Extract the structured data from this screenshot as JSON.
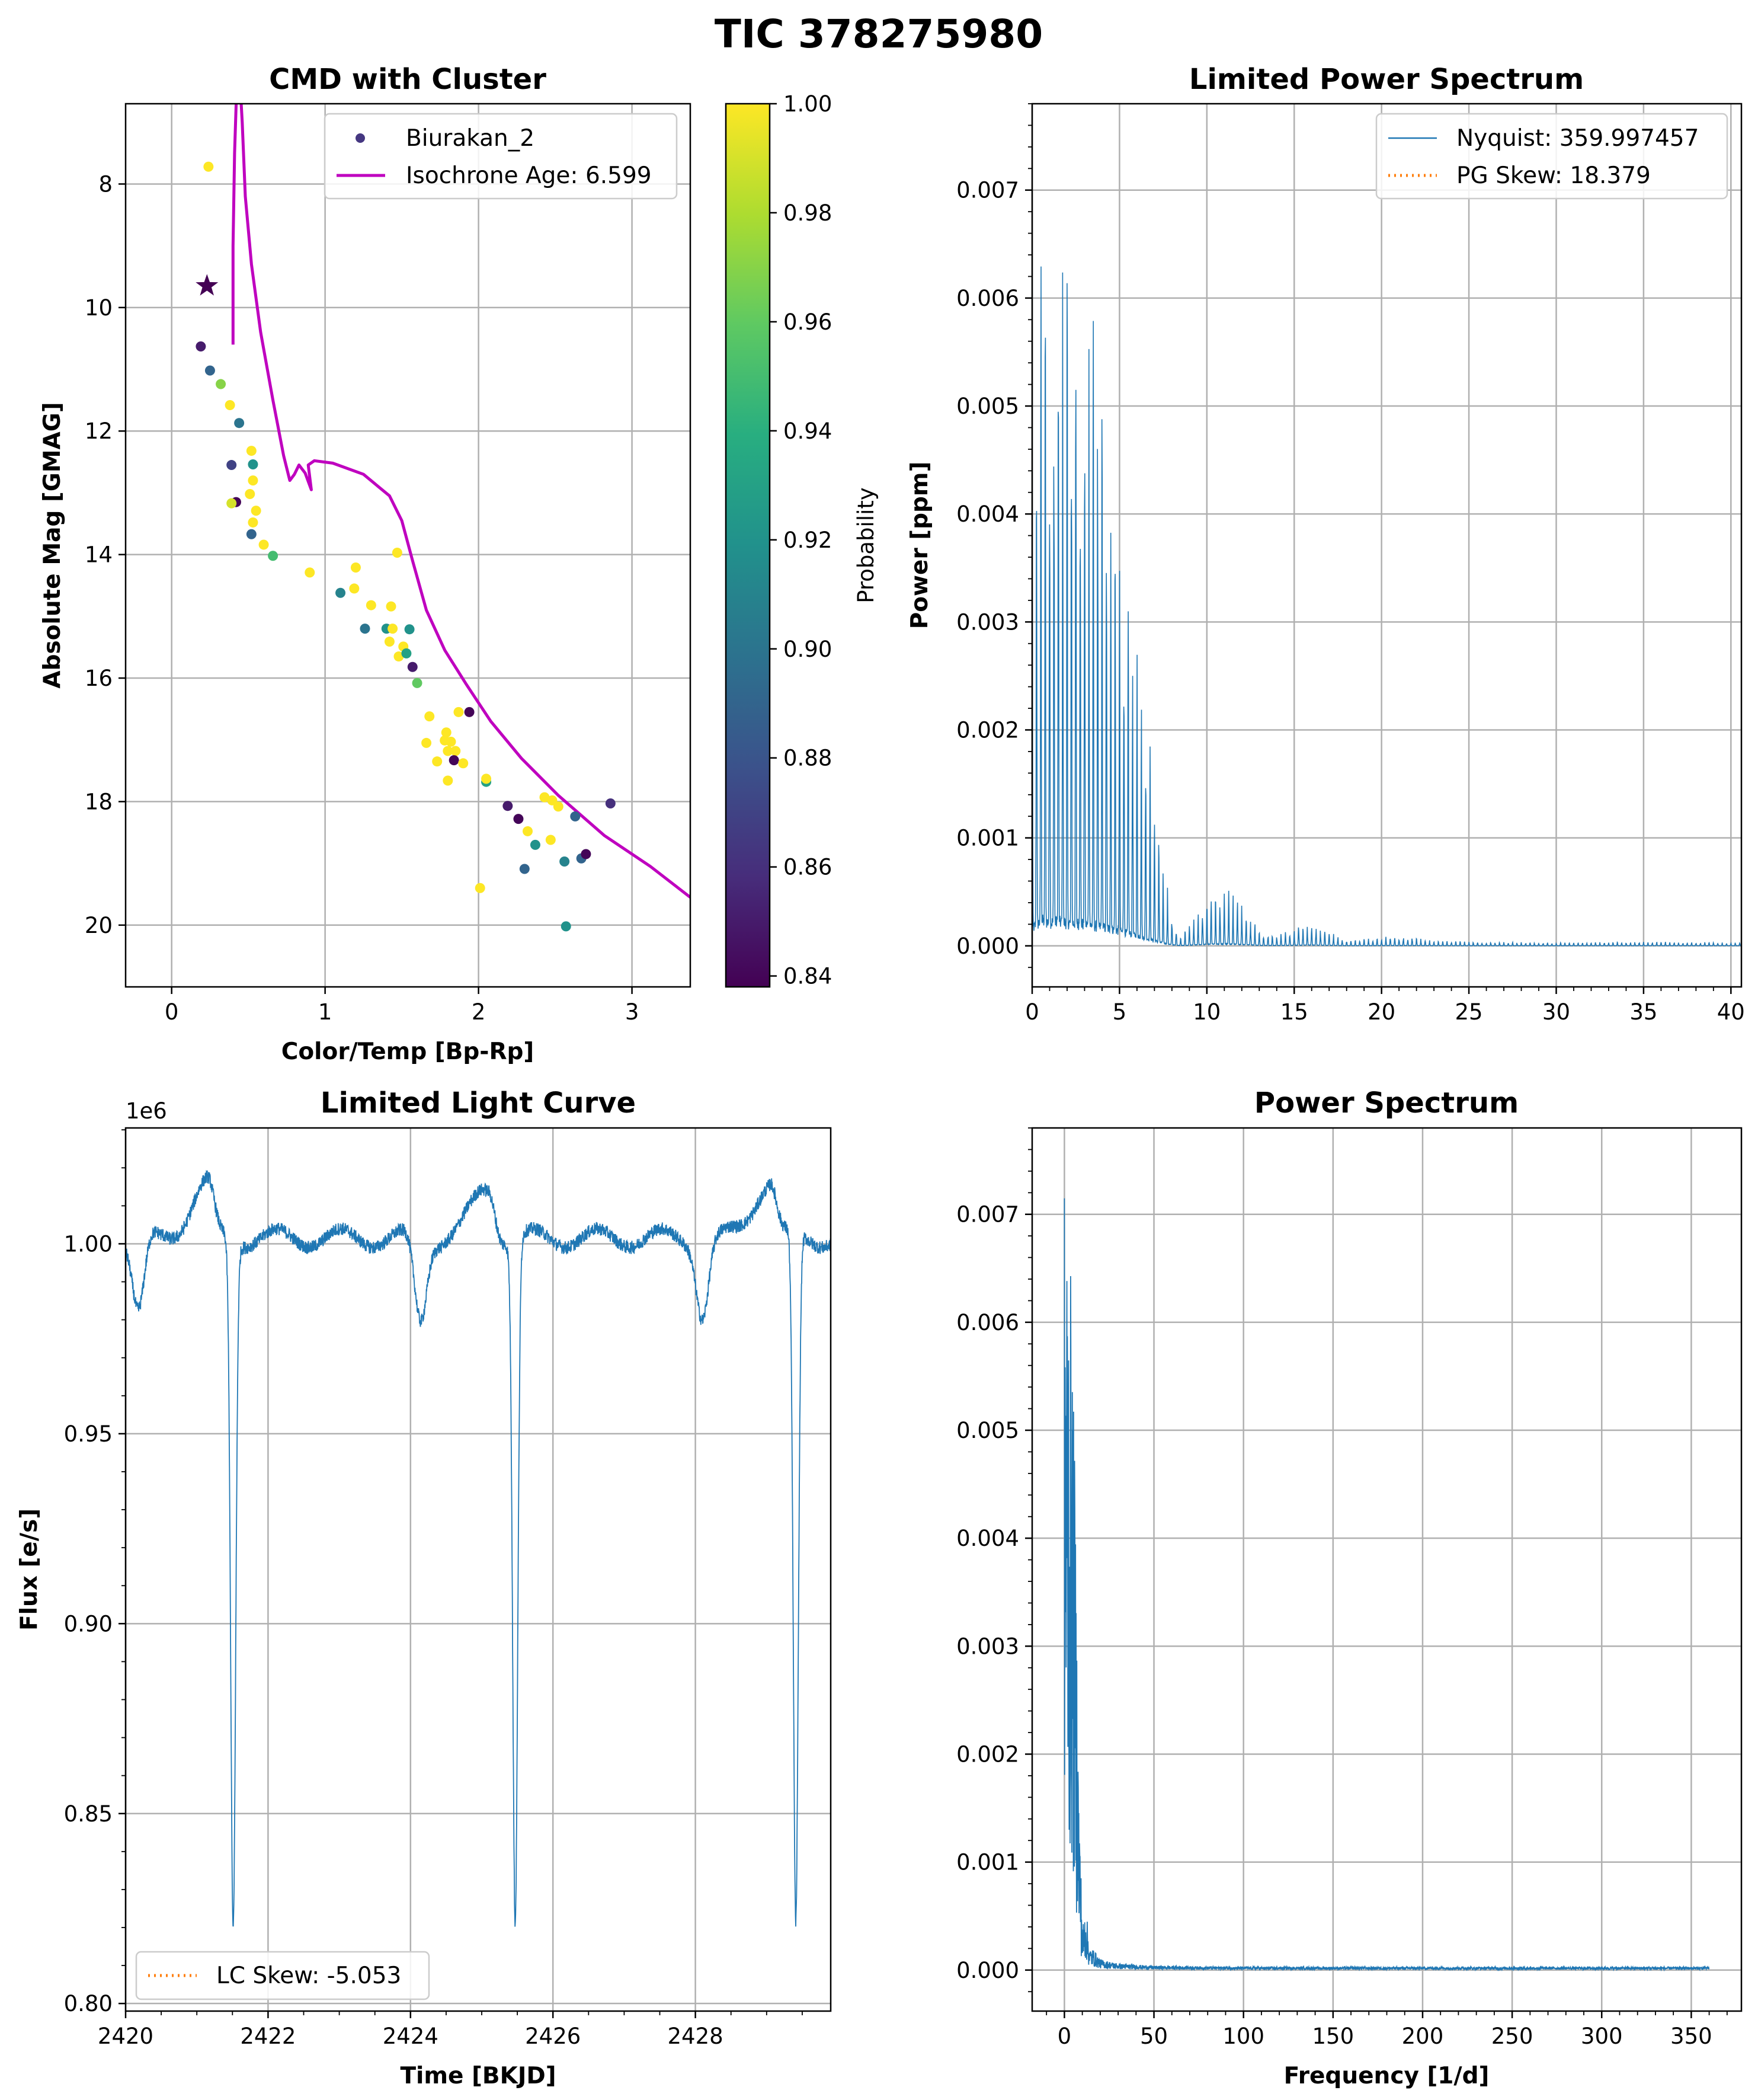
{
  "suptitle": "TIC 378275980",
  "colors": {
    "blue": "#1f77b4",
    "orange": "#ff7f0e",
    "magenta": "#bf00bf",
    "star": "#440154"
  },
  "chart_data": [
    {
      "id": "cmd",
      "type": "scatter",
      "title": "CMD with Cluster",
      "xlabel": "Color/Temp [Bp-Rp]",
      "ylabel": "Absolute Mag [GMAG]",
      "xlim": [
        -0.3,
        3.38
      ],
      "ylim": [
        21.0,
        6.7
      ],
      "y_inverted": true,
      "xticks": [
        0,
        1,
        2,
        3
      ],
      "yticks": [
        8,
        10,
        12,
        14,
        16,
        18,
        20
      ],
      "grid": true,
      "legend": {
        "position": "top-right",
        "entries": [
          "Biurakan_2",
          "Isochrone Age: 6.599"
        ]
      },
      "colorbar": {
        "label": "Probability",
        "colormap": "viridis",
        "range": [
          0.838,
          1.0
        ],
        "ticks": [
          0.84,
          0.86,
          0.88,
          0.9,
          0.92,
          0.94,
          0.96,
          0.98,
          1.0
        ],
        "tick_labels": [
          "0.84",
          "0.86",
          "0.88",
          "0.90",
          "0.92",
          "0.94",
          "0.96",
          "0.98",
          "1.00"
        ]
      },
      "target_star": {
        "x": 0.23,
        "y": 9.65,
        "marker": "star"
      },
      "members": [
        [
          0.24,
          7.72,
          1.0
        ],
        [
          0.19,
          10.63,
          0.85
        ],
        [
          0.25,
          11.02,
          0.89
        ],
        [
          0.32,
          11.24,
          0.97
        ],
        [
          0.38,
          11.58,
          1.0
        ],
        [
          0.44,
          11.87,
          0.9
        ],
        [
          0.39,
          12.55,
          0.87
        ],
        [
          0.52,
          12.32,
          1.0
        ],
        [
          0.53,
          12.54,
          0.92
        ],
        [
          0.53,
          12.8,
          1.0
        ],
        [
          0.51,
          13.02,
          1.0
        ],
        [
          0.42,
          13.15,
          0.84
        ],
        [
          0.39,
          13.17,
          0.99
        ],
        [
          0.55,
          13.29,
          1.0
        ],
        [
          0.53,
          13.48,
          1.0
        ],
        [
          0.52,
          13.67,
          0.89
        ],
        [
          0.6,
          13.84,
          1.0
        ],
        [
          0.66,
          14.02,
          0.95
        ],
        [
          0.9,
          14.29,
          1.0
        ],
        [
          1.1,
          14.62,
          0.91
        ],
        [
          1.19,
          14.55,
          1.0
        ],
        [
          1.2,
          14.21,
          1.0
        ],
        [
          1.3,
          14.82,
          1.0
        ],
        [
          1.47,
          13.97,
          1.0
        ],
        [
          1.43,
          14.84,
          1.0
        ],
        [
          1.26,
          15.2,
          0.9
        ],
        [
          1.4,
          15.2,
          0.92
        ],
        [
          1.44,
          15.2,
          1.0
        ],
        [
          1.55,
          15.21,
          0.92
        ],
        [
          1.42,
          15.41,
          1.0
        ],
        [
          1.51,
          15.49,
          1.0
        ],
        [
          1.48,
          15.65,
          1.0
        ],
        [
          1.53,
          15.6,
          0.93
        ],
        [
          1.57,
          15.82,
          0.85
        ],
        [
          1.6,
          16.08,
          0.96
        ],
        [
          1.68,
          16.62,
          1.0
        ],
        [
          1.66,
          17.05,
          1.0
        ],
        [
          1.79,
          16.88,
          1.0
        ],
        [
          1.87,
          16.55,
          1.0
        ],
        [
          1.94,
          16.55,
          0.84
        ],
        [
          1.78,
          17.01,
          1.0
        ],
        [
          1.82,
          17.03,
          1.0
        ],
        [
          1.8,
          17.18,
          1.0
        ],
        [
          1.85,
          17.18,
          1.0
        ],
        [
          1.84,
          17.33,
          0.84
        ],
        [
          1.9,
          17.38,
          1.0
        ],
        [
          1.73,
          17.35,
          1.0
        ],
        [
          1.8,
          17.66,
          1.0
        ],
        [
          2.05,
          17.68,
          0.93
        ],
        [
          2.05,
          17.63,
          1.0
        ],
        [
          2.43,
          17.93,
          1.0
        ],
        [
          2.48,
          17.98,
          1.0
        ],
        [
          2.52,
          18.08,
          1.0
        ],
        [
          2.19,
          18.07,
          0.85
        ],
        [
          2.26,
          18.28,
          0.84
        ],
        [
          2.32,
          18.48,
          1.0
        ],
        [
          2.37,
          18.7,
          0.92
        ],
        [
          2.47,
          18.62,
          1.0
        ],
        [
          2.63,
          18.24,
          0.89
        ],
        [
          2.86,
          18.03,
          0.86
        ],
        [
          2.67,
          18.92,
          0.89
        ],
        [
          2.7,
          18.85,
          0.84
        ],
        [
          2.56,
          18.97,
          0.91
        ],
        [
          2.3,
          19.09,
          0.89
        ],
        [
          2.01,
          19.4,
          1.0
        ],
        [
          2.57,
          20.02,
          0.92
        ]
      ],
      "isochrone": [
        [
          0.4,
          10.6
        ],
        [
          0.4,
          9.0
        ],
        [
          0.41,
          7.5
        ],
        [
          0.42,
          6.72
        ],
        [
          0.44,
          6.1
        ],
        [
          0.46,
          7.0
        ],
        [
          0.48,
          8.2
        ],
        [
          0.52,
          9.3
        ],
        [
          0.58,
          10.4
        ],
        [
          0.66,
          11.5
        ],
        [
          0.73,
          12.4
        ],
        [
          0.77,
          12.8
        ],
        [
          0.8,
          12.7
        ],
        [
          0.83,
          12.55
        ],
        [
          0.87,
          12.68
        ],
        [
          0.91,
          12.95
        ],
        [
          0.89,
          12.55
        ],
        [
          0.93,
          12.48
        ],
        [
          1.05,
          12.52
        ],
        [
          1.25,
          12.7
        ],
        [
          1.42,
          13.05
        ],
        [
          1.5,
          13.45
        ],
        [
          1.57,
          14.1
        ],
        [
          1.66,
          14.9
        ],
        [
          1.78,
          15.55
        ],
        [
          1.92,
          16.1
        ],
        [
          2.08,
          16.7
        ],
        [
          2.28,
          17.3
        ],
        [
          2.52,
          17.9
        ],
        [
          2.82,
          18.55
        ],
        [
          3.12,
          19.05
        ],
        [
          3.38,
          19.55
        ]
      ]
    },
    {
      "id": "limited-ps",
      "type": "line",
      "title": "Limited Power Spectrum",
      "xlabel": "",
      "ylabel": "Power [ppm]",
      "xlim": [
        0,
        40.6
      ],
      "ylim": [
        -0.00038,
        0.0078
      ],
      "xticks": [
        0,
        5,
        10,
        15,
        20,
        25,
        30,
        35,
        40
      ],
      "yticks": [
        0.0,
        0.001,
        0.002,
        0.003,
        0.004,
        0.005,
        0.006,
        0.007
      ],
      "ytick_labels": [
        "0.000",
        "0.001",
        "0.002",
        "0.003",
        "0.004",
        "0.005",
        "0.006",
        "0.007"
      ],
      "grid": true,
      "legend": {
        "position": "top-right",
        "entries": [
          "Nyquist: 359.997457",
          "PG Skew: 18.379"
        ]
      },
      "approx_envelope": [
        [
          0.0,
          0.0051
        ],
        [
          0.5,
          0.0074
        ],
        [
          1.0,
          0.007
        ],
        [
          1.5,
          0.007
        ],
        [
          2.0,
          0.0069
        ],
        [
          2.5,
          0.0067
        ],
        [
          3.0,
          0.0064
        ],
        [
          3.5,
          0.006
        ],
        [
          4.0,
          0.0055
        ],
        [
          4.5,
          0.005
        ],
        [
          5.0,
          0.0044
        ],
        [
          5.5,
          0.0037
        ],
        [
          6.0,
          0.003
        ],
        [
          6.5,
          0.0023
        ],
        [
          7.0,
          0.0015
        ],
        [
          7.5,
          0.0008
        ],
        [
          8.0,
          0.0003
        ],
        [
          8.5,
          0.0001
        ],
        [
          9.0,
          0.0002
        ],
        [
          10.0,
          0.00045
        ],
        [
          11.0,
          0.00055
        ],
        [
          12.0,
          0.00042
        ],
        [
          13.0,
          0.00015
        ],
        [
          14.0,
          0.0001
        ],
        [
          15.0,
          0.00018
        ],
        [
          16.0,
          0.00022
        ],
        [
          17.0,
          0.00014
        ],
        [
          18.0,
          5e-05
        ],
        [
          20.0,
          8e-05
        ],
        [
          21.0,
          0.0001
        ],
        [
          23.0,
          5e-05
        ],
        [
          25.0,
          4e-05
        ],
        [
          30.0,
          3e-05
        ],
        [
          35.0,
          4e-05
        ],
        [
          40.6,
          3e-05
        ]
      ]
    },
    {
      "id": "limited-lc",
      "type": "line",
      "title": "Limited Light Curve",
      "xlabel": "Time [BKJD]",
      "ylabel": "Flux [e/s]",
      "offset_text": "1e6",
      "xlim": [
        2420,
        2429.9
      ],
      "ylim": [
        0.798,
        1.0305
      ],
      "xticks": [
        2420,
        2422,
        2424,
        2426,
        2428
      ],
      "yticks": [
        0.8,
        0.85,
        0.9,
        0.95,
        1.0
      ],
      "ytick_labels": [
        "0.80",
        "0.85",
        "0.90",
        "0.95",
        "1.00"
      ],
      "grid": true,
      "legend": {
        "position": "lower-left",
        "entries": [
          "LC Skew: -5.053"
        ]
      },
      "primary_eclipses": [
        {
          "t": 2421.51,
          "min_flux": 0.819,
          "width": 0.09
        },
        {
          "t": 2425.47,
          "min_flux": 0.82,
          "width": 0.09
        },
        {
          "t": 2429.41,
          "min_flux": 0.818,
          "width": 0.09
        }
      ],
      "secondary_eclipses": [
        {
          "t": 2420.18,
          "min_flux": 0.98,
          "width": 0.12
        },
        {
          "t": 2424.14,
          "min_flux": 0.978,
          "width": 0.12
        },
        {
          "t": 2428.1,
          "min_flux": 0.98,
          "width": 0.12
        }
      ],
      "pre_eclipse_peaks": [
        {
          "t": 2421.15,
          "flux": 1.016
        },
        {
          "t": 2425.1,
          "flux": 1.015
        },
        {
          "t": 2429.05,
          "flux": 1.017
        }
      ]
    },
    {
      "id": "full-ps",
      "type": "line",
      "title": "Power Spectrum",
      "xlabel": "Frequency [1/d]",
      "ylabel": "",
      "xlim": [
        -18,
        378
      ],
      "ylim": [
        -0.00038,
        0.0078
      ],
      "xticks": [
        0,
        50,
        100,
        150,
        200,
        250,
        300,
        350
      ],
      "yticks": [
        0.0,
        0.001,
        0.002,
        0.003,
        0.004,
        0.005,
        0.006,
        0.007
      ],
      "ytick_labels": [
        "0.000",
        "0.001",
        "0.002",
        "0.003",
        "0.004",
        "0.005",
        "0.006",
        "0.007"
      ],
      "grid": true,
      "approx_envelope": [
        [
          0.0,
          0.0074
        ],
        [
          2.0,
          0.0071
        ],
        [
          4.0,
          0.0062
        ],
        [
          6.0,
          0.0045
        ],
        [
          8.0,
          0.0018
        ],
        [
          10.0,
          0.0004
        ],
        [
          12.0,
          0.0006
        ],
        [
          14.0,
          0.0002
        ],
        [
          16.0,
          0.0002
        ],
        [
          20.0,
          0.0001
        ],
        [
          30.0,
          6e-05
        ],
        [
          50.0,
          4e-05
        ],
        [
          100.0,
          3e-05
        ],
        [
          200.0,
          3e-05
        ],
        [
          300.0,
          3e-05
        ],
        [
          360.0,
          3e-05
        ]
      ]
    }
  ]
}
